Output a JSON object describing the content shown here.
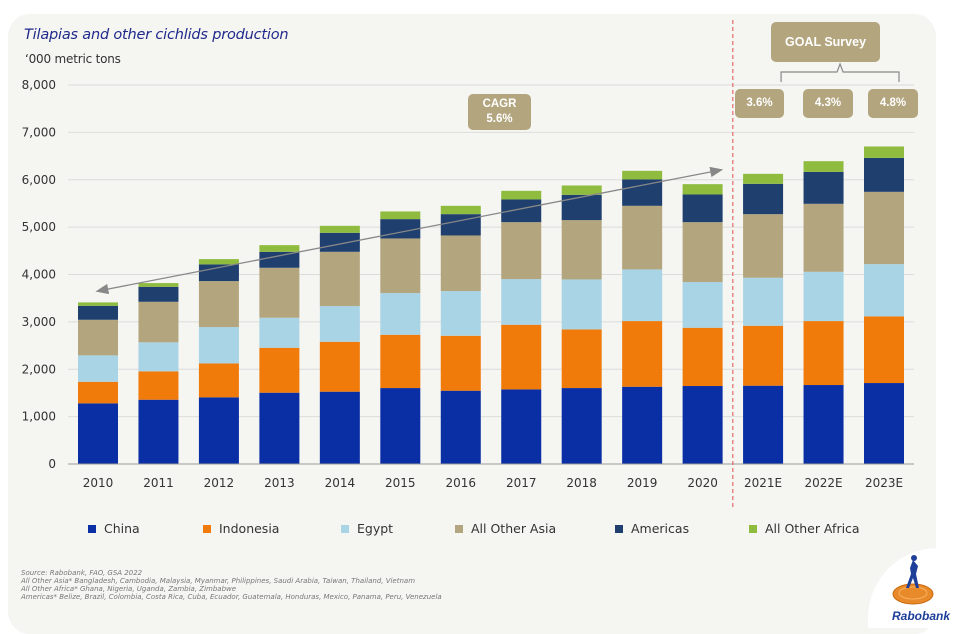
{
  "header": {
    "title": "Tilapias and other cichlids production",
    "unit": "‘000 metric tons"
  },
  "annotations": {
    "cagr_label": "CAGR",
    "cagr_value": "5.6%",
    "goal_survey_label": "GOAL Survey",
    "goal_rates": [
      "3.6%",
      "4.3%",
      "4.8%"
    ]
  },
  "chart_data": {
    "type": "bar",
    "stacked": true,
    "title": "Tilapias and other cichlids production",
    "ylabel": "‘000 metric tons",
    "xlabel": "",
    "ylim": [
      0,
      8000
    ],
    "yticks": [
      0,
      1000,
      2000,
      3000,
      4000,
      5000,
      6000,
      7000,
      8000
    ],
    "ytick_labels": [
      "0",
      "1,000",
      "2,000",
      "3,000",
      "4,000",
      "5,000",
      "6,000",
      "7,000",
      "8,000"
    ],
    "grid": true,
    "legend_position": "bottom",
    "categories": [
      "2010",
      "2011",
      "2012",
      "2013",
      "2014",
      "2015",
      "2016",
      "2017",
      "2018",
      "2019",
      "2020",
      "2021E",
      "2022E",
      "2023E"
    ],
    "series": [
      {
        "name": "China",
        "color": "#0a2ea3",
        "values": [
          1280,
          1357,
          1407,
          1505,
          1526,
          1603,
          1547,
          1575,
          1603,
          1631,
          1646,
          1653,
          1667,
          1709
        ]
      },
      {
        "name": "Indonesia",
        "color": "#f07a0a",
        "values": [
          456,
          599,
          717,
          949,
          1054,
          1125,
          1160,
          1364,
          1239,
          1386,
          1230,
          1265,
          1350,
          1407
        ]
      },
      {
        "name": "Egypt",
        "color": "#a8d4e6",
        "values": [
          557,
          612,
          766,
          633,
          753,
          880,
          943,
          964,
          1054,
          1090,
          964,
          1013,
          1040,
          1103
        ]
      },
      {
        "name": "All Other Asia",
        "color": "#b3a57e",
        "values": [
          751,
          856,
          971,
          1055,
          1146,
          1153,
          1174,
          1202,
          1252,
          1343,
          1265,
          1343,
          1435,
          1526
        ]
      },
      {
        "name": "Americas",
        "color": "#1f3f6e",
        "values": [
          296,
          317,
          352,
          337,
          401,
          408,
          450,
          479,
          534,
          556,
          584,
          640,
          675,
          717
        ]
      },
      {
        "name": "All Other Africa",
        "color": "#8fbc3f",
        "values": [
          71,
          78,
          112,
          141,
          148,
          162,
          176,
          182,
          197,
          182,
          218,
          211,
          225,
          240
        ]
      }
    ],
    "annotations": [
      {
        "type": "arrow",
        "from_category": "2010",
        "to_category": "2020",
        "label": "CAGR 5.6%"
      },
      {
        "type": "divider",
        "after_category": "2020",
        "style": "dashed-red"
      },
      {
        "type": "bracket",
        "categories": [
          "2021E",
          "2022E",
          "2023E"
        ],
        "label": "GOAL Survey",
        "rates": [
          "3.6%",
          "4.3%",
          "4.8%"
        ]
      }
    ]
  },
  "footnotes": [
    "Source: Rabobank, FAO, GSA 2022",
    "All Other Asia* Bangladesh, Cambodia, Malaysia, Myanmar, Philippines, Saudi Arabia, Taiwan, Thailand, Vietnam",
    "All Other Africa* Ghana, Nigeria, Uganda, Zambia, Zimbabwe",
    "Americas* Belize, Brazil, Colombia, Costa Rica, Cuba, Ecuador, Guatemala, Honduras, Mexico, Panama, Peru, Venezuela"
  ],
  "logo": {
    "text": "Rabobank"
  }
}
